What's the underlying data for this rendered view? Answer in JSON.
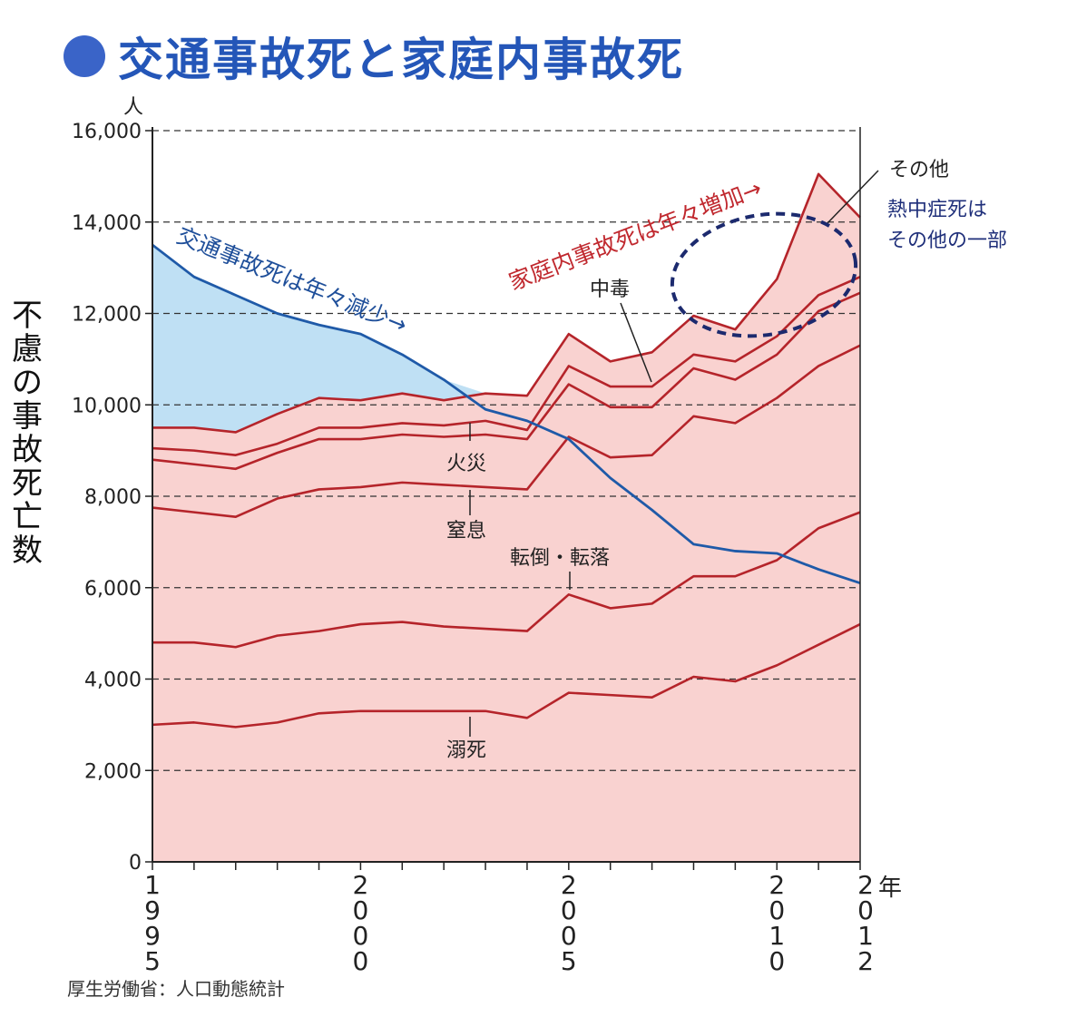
{
  "title": "交通事故死と家庭内事故死",
  "y_axis_label": "不慮の事故死亡数",
  "y_unit": "人",
  "x_unit": "年",
  "source": "厚生労働省：人口動態統計",
  "colors": {
    "traffic_line": "#1f5aa8",
    "traffic_fill": "#bfe0f4",
    "household_fill": "#f9d2d0",
    "household_line": "#b5242a",
    "title": "#2456b8",
    "title_dot": "#3a64c8",
    "annotation_blue": "#1f4f9a",
    "annotation_red": "#c0282e",
    "ellipse": "#1c2a6e"
  },
  "annotations": {
    "traffic_trend": "交通事故死は年々減少→",
    "household_trend": "家庭内事故死は年々増加→",
    "other": "その他",
    "heatstroke_line1": "熱中症死は",
    "heatstroke_line2": "その他の一部",
    "poisoning": "中毒",
    "fire": "火災",
    "suffocation": "窒息",
    "falls": "転倒・転落",
    "drowning": "溺死"
  },
  "chart_data": {
    "type": "area",
    "title": "交通事故死と家庭内事故死",
    "ylabel": "不慮の事故死亡数",
    "y_unit": "人",
    "xlabel": "年",
    "ylim": [
      0,
      16000
    ],
    "yticks": [
      0,
      2000,
      4000,
      6000,
      8000,
      10000,
      12000,
      14000,
      16000
    ],
    "ytick_labels": [
      "0",
      "2,000",
      "4,000",
      "6,000",
      "8,000",
      "10,000",
      "12,000",
      "14,000",
      "16,000"
    ],
    "xlim": [
      1995,
      2012
    ],
    "xtick_labels": [
      {
        "x": 1995,
        "label": "1995"
      },
      {
        "x": 2000,
        "label": "2000"
      },
      {
        "x": 2005,
        "label": "2005"
      },
      {
        "x": 2010,
        "label": "2010"
      },
      {
        "x": 2012,
        "label": "2012"
      }
    ],
    "grid": "horizontal dashed",
    "x": [
      1995,
      1996,
      1997,
      1998,
      1999,
      2000,
      2001,
      2002,
      2003,
      2004,
      2005,
      2006,
      2007,
      2008,
      2009,
      2010,
      2011,
      2012
    ],
    "traffic": {
      "name": "交通事故死",
      "values": [
        13500,
        12800,
        12400,
        12000,
        11750,
        11550,
        11100,
        10550,
        9900,
        9650,
        9250,
        8400,
        7700,
        6950,
        6800,
        6750,
        6400,
        6100
      ]
    },
    "household_cumulative": [
      {
        "name": "溺死",
        "values": [
          3000,
          3050,
          2950,
          3050,
          3250,
          3300,
          3300,
          3300,
          3300,
          3150,
          3700,
          3650,
          3600,
          4050,
          3950,
          4300,
          4750,
          5200
        ]
      },
      {
        "name": "転倒・転落",
        "values": [
          4800,
          4800,
          4700,
          4950,
          5050,
          5200,
          5250,
          5150,
          5100,
          5050,
          5850,
          5550,
          5650,
          6250,
          6250,
          6600,
          7300,
          7650
        ]
      },
      {
        "name": "窒息",
        "values": [
          7750,
          7650,
          7550,
          7950,
          8150,
          8200,
          8300,
          8250,
          8200,
          8150,
          9300,
          8850,
          8900,
          9750,
          9600,
          10150,
          10850,
          11300
        ]
      },
      {
        "name": "火災",
        "values": [
          8800,
          8700,
          8600,
          8950,
          9250,
          9250,
          9350,
          9300,
          9350,
          9250,
          10450,
          9950,
          9950,
          10800,
          10550,
          11100,
          12050,
          12450
        ]
      },
      {
        "name": "中毒",
        "values": [
          9050,
          9000,
          8900,
          9150,
          9500,
          9500,
          9600,
          9550,
          9650,
          9450,
          10850,
          10400,
          10400,
          11100,
          10950,
          11500,
          12400,
          12800
        ]
      },
      {
        "name": "その他",
        "values": [
          9500,
          9500,
          9400,
          9800,
          10150,
          10100,
          10250,
          10100,
          10250,
          10200,
          11550,
          10950,
          11150,
          11950,
          11650,
          12750,
          15050,
          14100
        ]
      }
    ]
  }
}
